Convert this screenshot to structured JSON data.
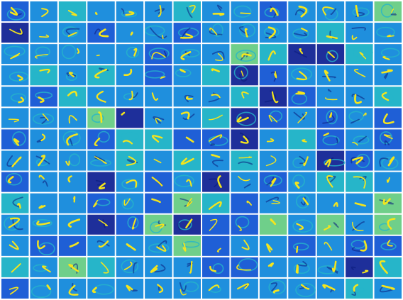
{
  "figure": {
    "rows": 14,
    "cols": 14,
    "background": "#ffffff",
    "colormap": [
      "#1e2f9a",
      "#1f5fd6",
      "#1f8fdd",
      "#26b5c9",
      "#6fcf8a",
      "#d8c93a",
      "#f5e51c"
    ],
    "stroke_color": "#f5e51c",
    "dark_stroke_color": "#0a1a7a"
  }
}
